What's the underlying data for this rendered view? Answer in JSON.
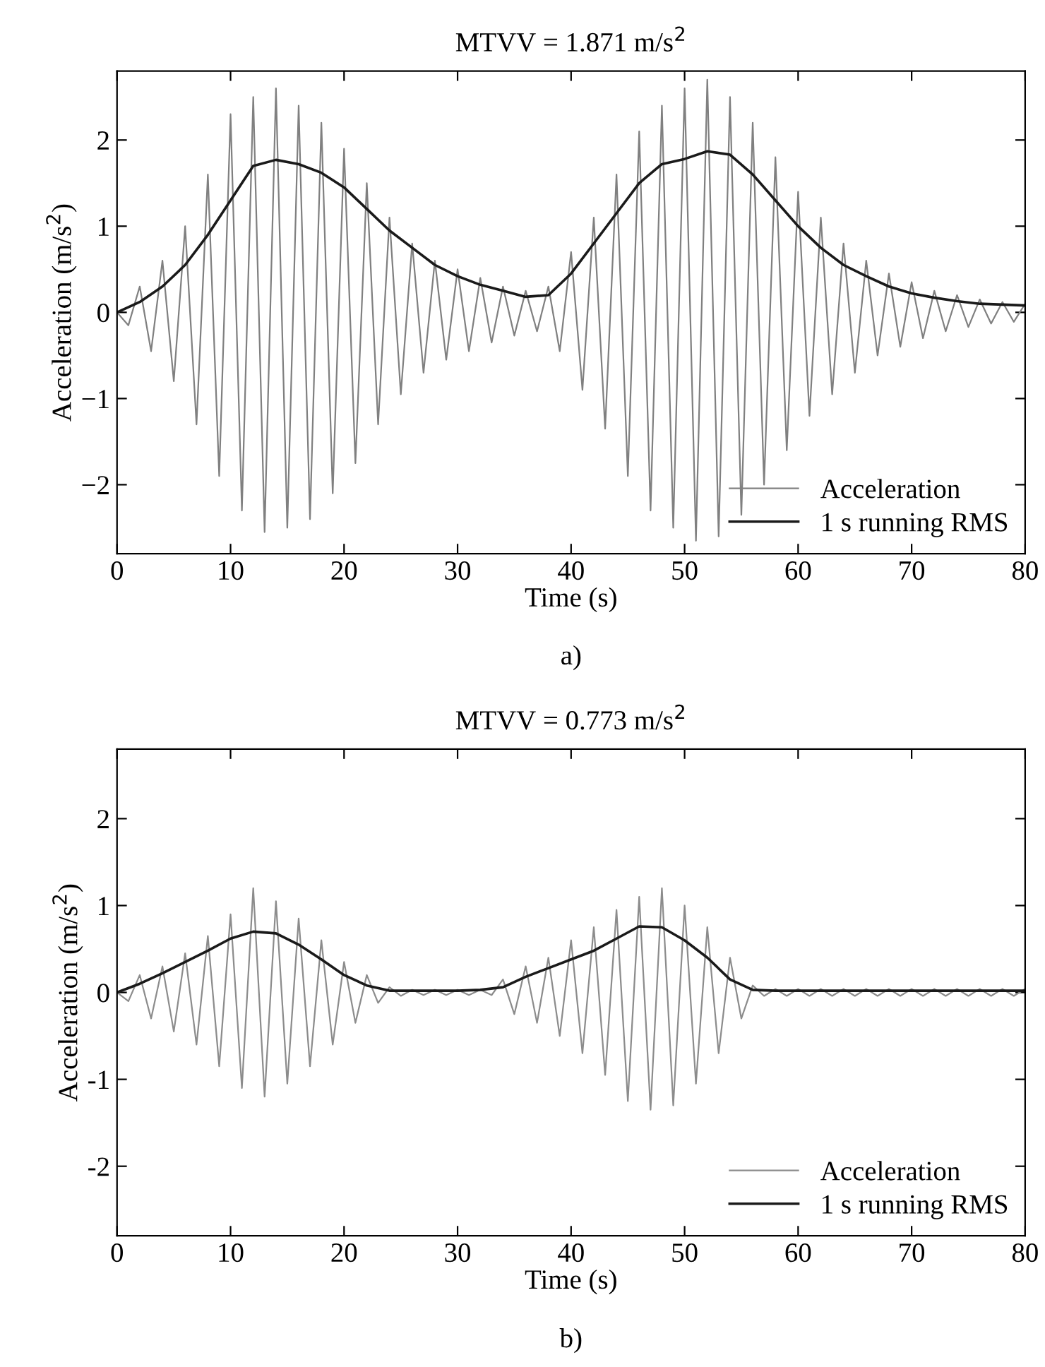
{
  "chart_data": [
    {
      "type": "line",
      "title": "MTVV = 1.871 m/s$^{2}$",
      "xlabel": "Time (s)",
      "ylabel": "Acceleration (m/s$^{2}$)",
      "annotations": [
        "a)"
      ],
      "xlim": [
        0,
        80
      ],
      "xticks": [
        0,
        10,
        20,
        30,
        40,
        50,
        60,
        70,
        80
      ],
      "ylim": [
        -2.8,
        2.8
      ],
      "yticks": [
        {
          "value": -2,
          "label": "−2"
        },
        {
          "value": -1,
          "label": "−1"
        },
        0,
        1,
        2
      ],
      "grid": false,
      "legend": "bottom right",
      "series": [
        {
          "name": "Acceleration",
          "color": "#808080",
          "x": [
            0,
            1,
            2,
            3,
            4,
            5,
            6,
            7,
            8,
            9,
            10,
            11,
            12,
            13,
            14,
            15,
            16,
            17,
            18,
            19,
            20,
            21,
            22,
            23,
            24,
            25,
            26,
            27,
            28,
            29,
            30,
            31,
            32,
            33,
            34,
            35,
            36,
            37,
            38,
            39,
            40,
            41,
            42,
            43,
            44,
            45,
            46,
            47,
            48,
            49,
            50,
            51,
            52,
            53,
            54,
            55,
            56,
            57,
            58,
            59,
            60,
            61,
            62,
            63,
            64,
            65,
            66,
            67,
            68,
            69,
            70,
            71,
            72,
            73,
            74,
            75,
            76,
            77,
            78,
            79,
            80
          ],
          "values": [
            0,
            -0.15,
            0.3,
            -0.45,
            0.6,
            -0.8,
            1.0,
            -1.3,
            1.6,
            -1.9,
            2.3,
            -2.3,
            2.5,
            -2.55,
            2.6,
            -2.5,
            2.4,
            -2.4,
            2.2,
            -2.1,
            1.9,
            -1.75,
            1.5,
            -1.3,
            1.1,
            -0.95,
            0.8,
            -0.7,
            0.6,
            -0.55,
            0.5,
            -0.45,
            0.4,
            -0.35,
            0.3,
            -0.27,
            0.25,
            -0.22,
            0.3,
            -0.45,
            0.7,
            -0.9,
            1.1,
            -1.35,
            1.6,
            -1.9,
            2.1,
            -2.3,
            2.4,
            -2.5,
            2.6,
            -2.65,
            2.7,
            -2.6,
            2.5,
            -2.35,
            2.2,
            -2.0,
            1.8,
            -1.6,
            1.4,
            -1.2,
            1.1,
            -0.95,
            0.8,
            -0.7,
            0.6,
            -0.5,
            0.45,
            -0.4,
            0.35,
            -0.3,
            0.25,
            -0.22,
            0.2,
            -0.17,
            0.15,
            -0.13,
            0.12,
            -0.11,
            0.1
          ]
        },
        {
          "name": "1 s running RMS",
          "color": "#1a1a1a",
          "x": [
            0,
            2,
            4,
            6,
            8,
            10,
            12,
            14,
            16,
            18,
            20,
            22,
            24,
            26,
            28,
            30,
            32,
            34,
            36,
            38,
            40,
            42,
            44,
            46,
            48,
            50,
            52,
            54,
            56,
            58,
            60,
            62,
            64,
            66,
            68,
            70,
            72,
            74,
            76,
            78,
            80
          ],
          "values": [
            0,
            0.12,
            0.3,
            0.55,
            0.9,
            1.3,
            1.7,
            1.77,
            1.72,
            1.62,
            1.45,
            1.2,
            0.95,
            0.75,
            0.55,
            0.42,
            0.32,
            0.25,
            0.18,
            0.2,
            0.45,
            0.8,
            1.15,
            1.5,
            1.72,
            1.78,
            1.87,
            1.83,
            1.6,
            1.3,
            1.0,
            0.75,
            0.55,
            0.42,
            0.3,
            0.22,
            0.17,
            0.13,
            0.1,
            0.09,
            0.08
          ]
        }
      ]
    },
    {
      "type": "line",
      "title": "MTVV = 0.773 m/s$^{2}$",
      "xlabel": "Time (s)",
      "ylabel": "Acceleration (m/s$^{2}$)",
      "annotations": [
        "b)"
      ],
      "xlim": [
        0,
        80
      ],
      "xticks": [
        0,
        10,
        20,
        30,
        40,
        50,
        60,
        70,
        80
      ],
      "ylim": [
        -2.8,
        2.8
      ],
      "yticks": [
        -2,
        -1,
        0,
        1,
        2
      ],
      "grid": false,
      "legend": "bottom right",
      "series": [
        {
          "name": "Acceleration",
          "color": "#8c8c8c",
          "x": [
            0,
            1,
            2,
            3,
            4,
            5,
            6,
            7,
            8,
            9,
            10,
            11,
            12,
            13,
            14,
            15,
            16,
            17,
            18,
            19,
            20,
            21,
            22,
            23,
            24,
            25,
            26,
            27,
            28,
            29,
            30,
            31,
            32,
            33,
            34,
            35,
            36,
            37,
            38,
            39,
            40,
            41,
            42,
            43,
            44,
            45,
            46,
            47,
            48,
            49,
            50,
            51,
            52,
            53,
            54,
            55,
            56,
            57,
            58,
            59,
            60,
            61,
            62,
            63,
            64,
            65,
            66,
            67,
            68,
            69,
            70,
            71,
            72,
            73,
            74,
            75,
            76,
            77,
            78,
            79,
            80
          ],
          "values": [
            0,
            -0.1,
            0.2,
            -0.3,
            0.3,
            -0.45,
            0.45,
            -0.6,
            0.65,
            -0.85,
            0.9,
            -1.1,
            1.2,
            -1.2,
            1.05,
            -1.05,
            0.85,
            -0.85,
            0.6,
            -0.6,
            0.35,
            -0.35,
            0.2,
            -0.12,
            0.06,
            -0.04,
            0.03,
            -0.03,
            0.03,
            -0.03,
            0.03,
            -0.03,
            0.03,
            -0.03,
            0.15,
            -0.25,
            0.3,
            -0.35,
            0.4,
            -0.5,
            0.6,
            -0.7,
            0.75,
            -0.95,
            0.95,
            -1.25,
            1.1,
            -1.35,
            1.2,
            -1.3,
            1.0,
            -1.05,
            0.75,
            -0.7,
            0.4,
            -0.3,
            0.08,
            -0.04,
            0.04,
            -0.04,
            0.04,
            -0.04,
            0.04,
            -0.04,
            0.04,
            -0.04,
            0.04,
            -0.04,
            0.04,
            -0.04,
            0.04,
            -0.04,
            0.04,
            -0.04,
            0.04,
            -0.04,
            0.04,
            -0.04,
            0.04,
            -0.04,
            0.04
          ]
        },
        {
          "name": "1 s running RMS",
          "color": "#1a1a1a",
          "x": [
            0,
            2,
            4,
            6,
            8,
            10,
            12,
            14,
            16,
            18,
            20,
            22,
            24,
            26,
            28,
            30,
            32,
            34,
            36,
            38,
            40,
            42,
            44,
            46,
            48,
            50,
            52,
            54,
            56,
            58,
            60,
            62,
            64,
            66,
            68,
            70,
            72,
            74,
            76,
            78,
            80
          ],
          "values": [
            0,
            0.1,
            0.22,
            0.35,
            0.48,
            0.62,
            0.7,
            0.68,
            0.55,
            0.38,
            0.2,
            0.08,
            0.02,
            0.02,
            0.02,
            0.02,
            0.03,
            0.06,
            0.18,
            0.28,
            0.38,
            0.48,
            0.62,
            0.76,
            0.75,
            0.6,
            0.4,
            0.15,
            0.03,
            0.02,
            0.02,
            0.02,
            0.02,
            0.02,
            0.02,
            0.02,
            0.02,
            0.02,
            0.02,
            0.02,
            0.02
          ]
        }
      ]
    }
  ]
}
